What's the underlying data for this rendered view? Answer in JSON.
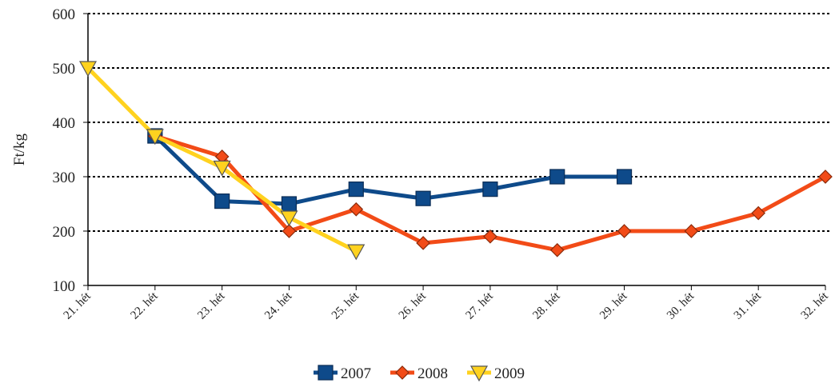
{
  "chart_data": {
    "type": "line",
    "y_label": "Ft/kg",
    "categories": [
      "21. hét",
      "22. hét",
      "23. hét",
      "24. hét",
      "25. hét",
      "26. hét",
      "27. hét",
      "28. hét",
      "29. hét",
      "30. hét",
      "31. hét",
      "32. hét"
    ],
    "series": [
      {
        "name": "2007",
        "color": "#0e4a8a",
        "marker": "square",
        "values": [
          null,
          375,
          255,
          250,
          277,
          260,
          277,
          300,
          300,
          null,
          null,
          null
        ]
      },
      {
        "name": "2008",
        "color": "#f24b17",
        "marker": "diamond",
        "values": [
          null,
          375,
          337,
          200,
          240,
          178,
          190,
          165,
          200,
          200,
          233,
          300
        ]
      },
      {
        "name": "2009",
        "color": "#ffd21f",
        "marker": "triangle-down",
        "values": [
          500,
          375,
          317,
          225,
          163,
          null,
          null,
          null,
          null,
          null,
          null,
          null
        ]
      }
    ],
    "ylim": [
      100,
      600
    ],
    "yticks": [
      100,
      200,
      300,
      400,
      500,
      600
    ],
    "grid": true,
    "legend": "bottom"
  }
}
